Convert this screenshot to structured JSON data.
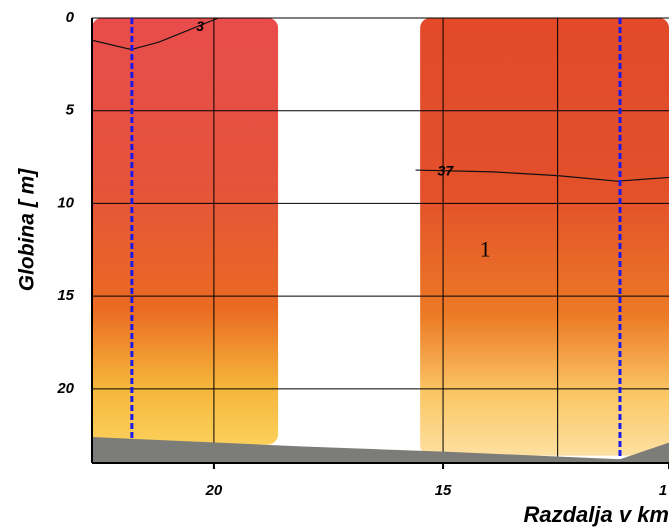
{
  "chart_data": {
    "type": "section",
    "ylabel": "Globina [ m]",
    "xlabel": "Razdalja v km",
    "xlim": [
      22.66,
      10.07
    ],
    "ylim": [
      0,
      24
    ],
    "xticks": [
      20,
      15,
      {
        "value": 10.07,
        "label": "1"
      }
    ],
    "yticks": [
      0,
      5,
      10,
      15,
      20
    ],
    "xgrid": [
      20,
      15,
      12.5
    ],
    "grid": true,
    "panels": [
      {
        "x": [
          22.66,
          18.6
        ],
        "depth": 23,
        "colors": [
          "#e84c4c",
          "#e5543a",
          "#ea6a22",
          "#f5b43a",
          "#fbd05a"
        ]
      },
      {
        "x": [
          15.5,
          10.07
        ],
        "depth": 23.6,
        "colors": [
          "#e24a2a",
          "#e3502a",
          "#ec7a26",
          "#fbc766",
          "#fde0a0"
        ]
      }
    ],
    "stations": [
      {
        "x": 21.79,
        "depth": 22.7,
        "color": "#1a1aee"
      },
      {
        "x": 11.14,
        "depth": 23.8,
        "color": "#1a1aee"
      }
    ],
    "contours": [
      {
        "label": "3",
        "x": [
          22.66,
          21.8,
          21.2,
          20.8,
          19.9
        ],
        "y": [
          1.2,
          1.7,
          1.3,
          0.9,
          0.0
        ],
        "label_x": 20.3,
        "label_y": 0.5
      },
      {
        "label": "37",
        "x": [
          15.6,
          13.9,
          12.5,
          11.2,
          10.07
        ],
        "y": [
          8.2,
          8.3,
          8.5,
          8.8,
          8.6
        ],
        "label_x": 14.95,
        "label_y": 8.3
      }
    ],
    "seabed": {
      "x": [
        22.66,
        18.12,
        14.85,
        11.14,
        10.07
      ],
      "y": [
        22.6,
        23.1,
        23.4,
        23.8,
        22.9
      ],
      "color": "#7c7c78"
    },
    "annotation": {
      "text": "1",
      "x": 14.2,
      "y": 12.6
    }
  }
}
